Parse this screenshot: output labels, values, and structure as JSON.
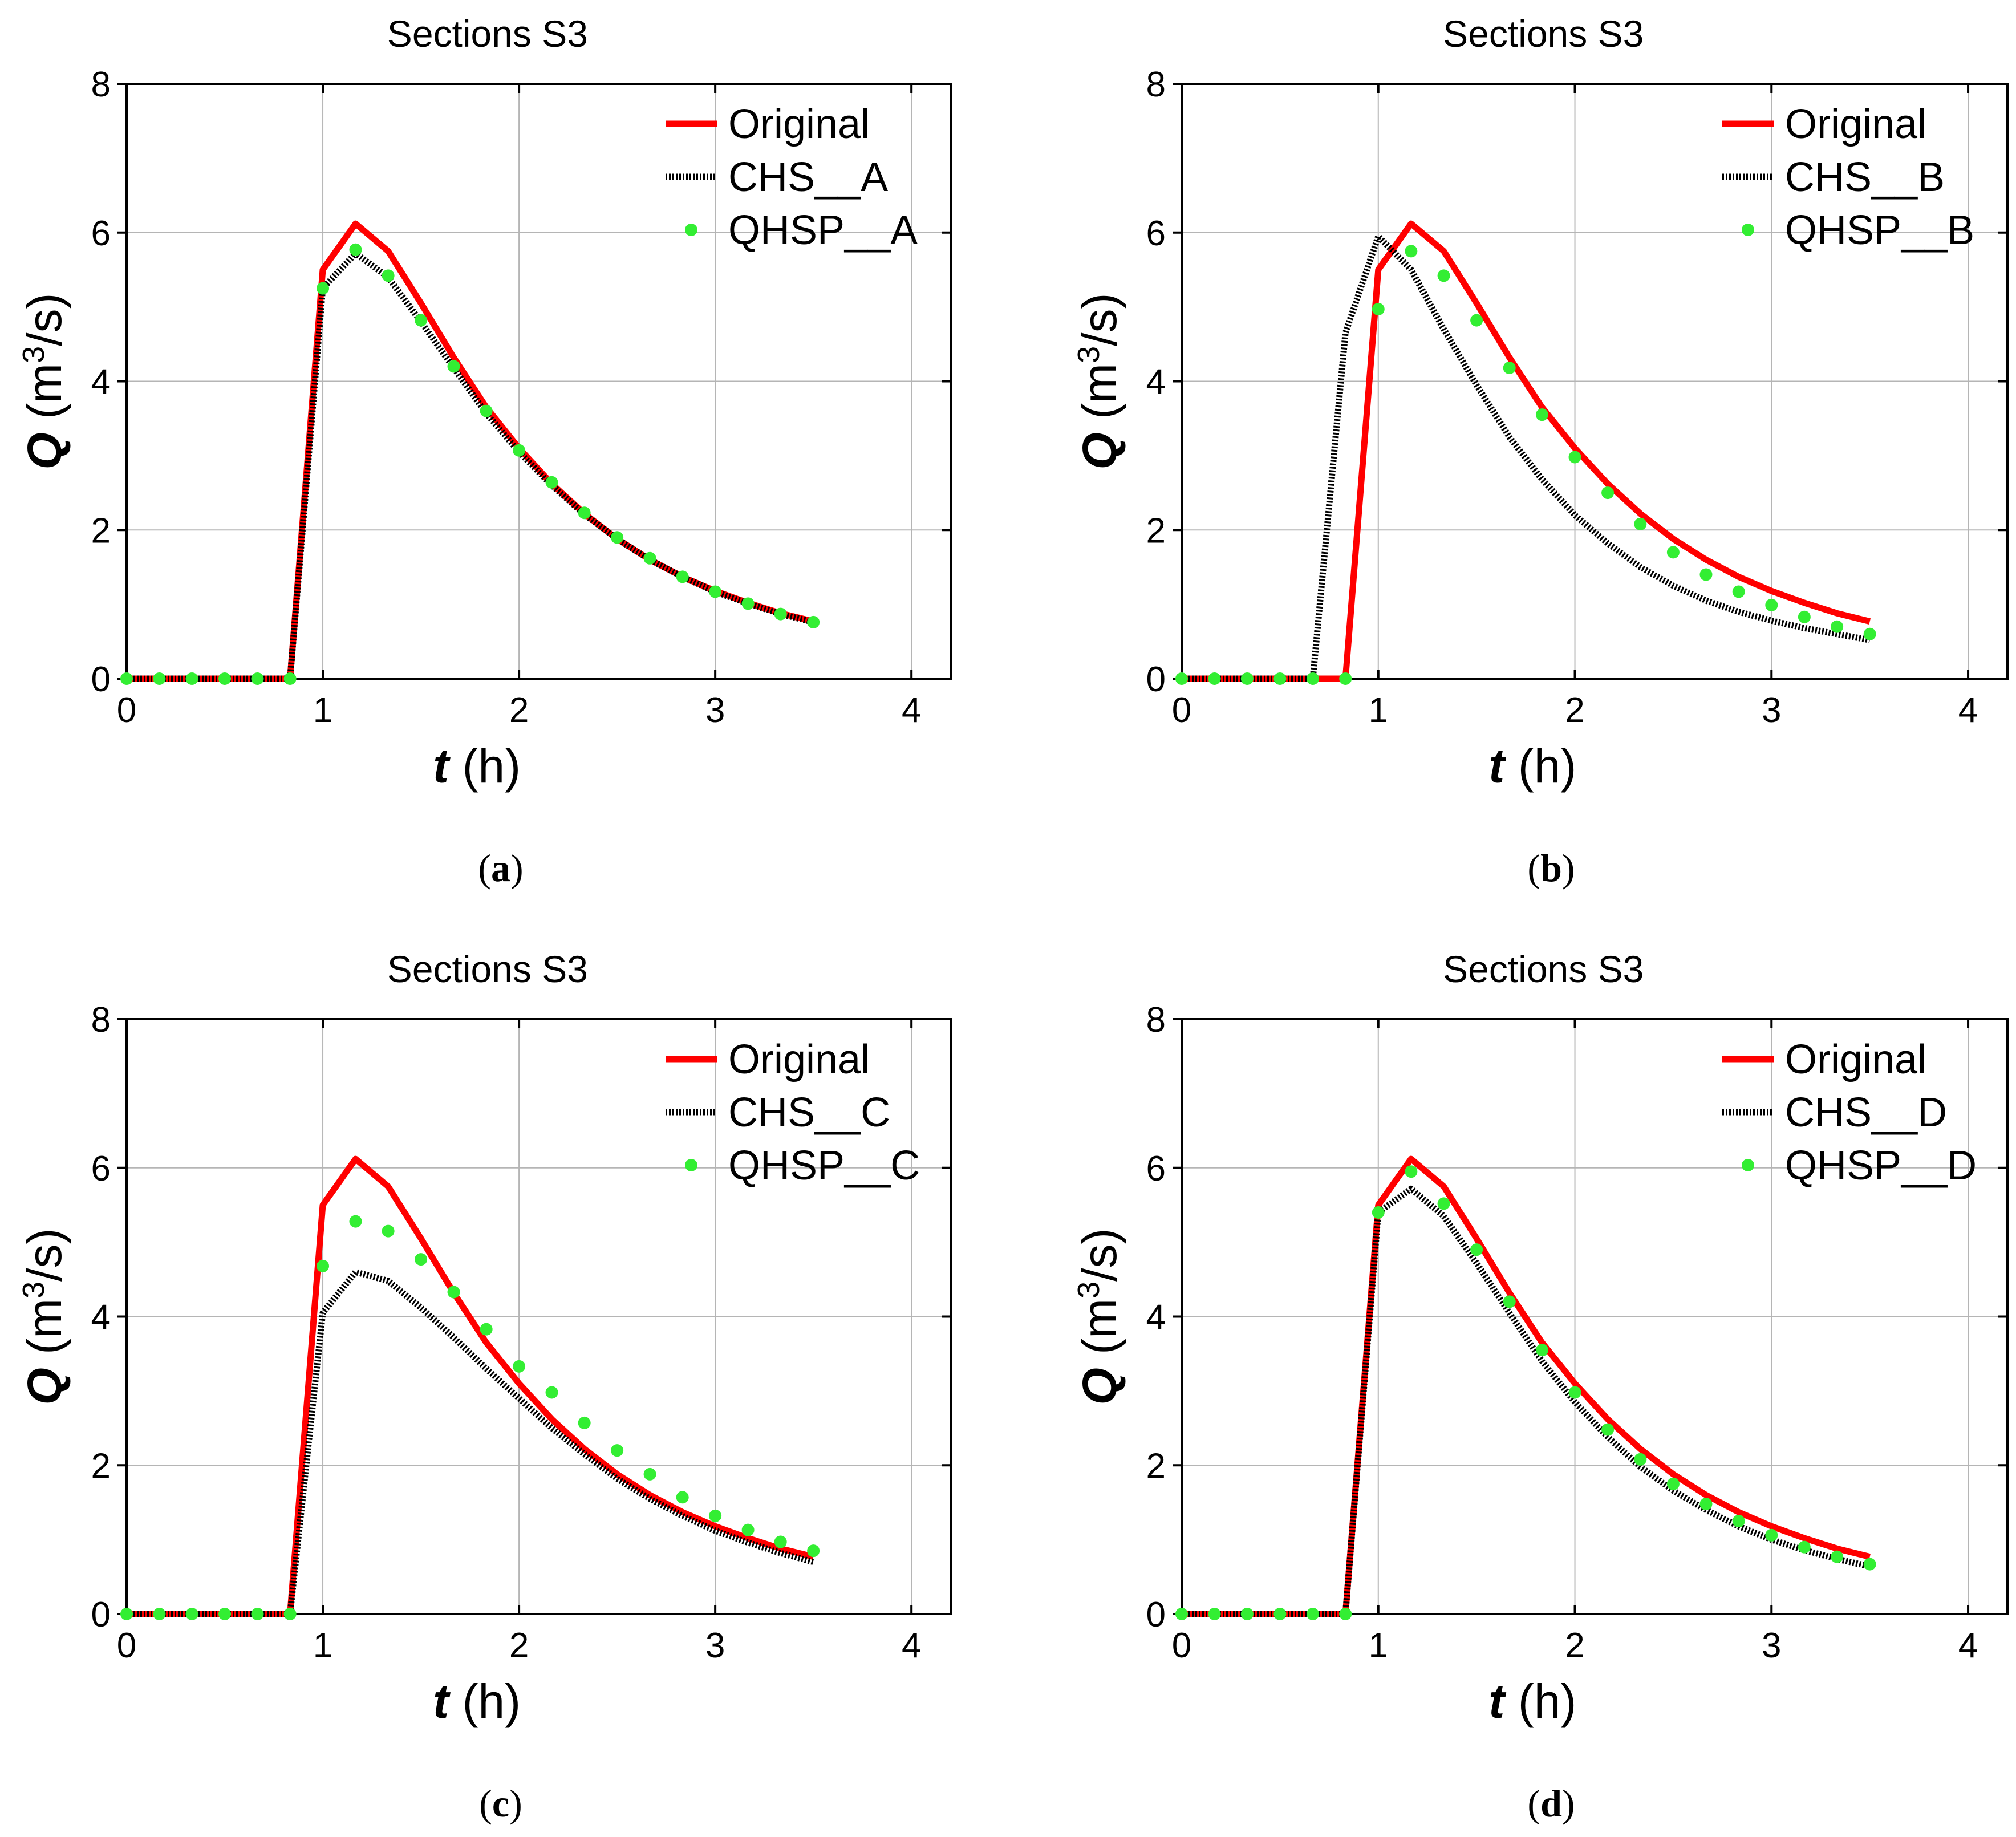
{
  "colors": {
    "original": "#ff0000",
    "chs": "#000000",
    "qhsp": "#33ee33",
    "grid": "#b5b5b5"
  },
  "chart_data": [
    {
      "type": "line",
      "panel": "a",
      "caption": "(a)",
      "caption_letter": "a",
      "title": "Sections S3",
      "xlabel_symbol": "t",
      "xlabel_unit": " (h)",
      "ylabel_symbol": "Q",
      "ylabel_unit_prefix": " (m",
      "ylabel_unit_exp": "3",
      "ylabel_unit_suffix": "/s)",
      "xlim": [
        0,
        4.2
      ],
      "ylim": [
        0,
        8
      ],
      "xticks": [
        0,
        1,
        2,
        3,
        4
      ],
      "yticks": [
        0,
        2,
        4,
        6,
        8
      ],
      "legend_position": "top-right",
      "grid": true,
      "x": [
        0,
        0.167,
        0.333,
        0.5,
        0.667,
        0.833,
        1.0,
        1.167,
        1.333,
        1.5,
        1.667,
        1.833,
        2.0,
        2.167,
        2.333,
        2.5,
        2.667,
        2.833,
        3.0,
        3.167,
        3.333,
        3.5
      ],
      "series": [
        {
          "name": "Original",
          "style": "solid",
          "values": [
            0,
            0,
            0,
            0,
            0,
            0,
            5.5,
            6.12,
            5.75,
            5.05,
            4.32,
            3.65,
            3.1,
            2.62,
            2.22,
            1.88,
            1.6,
            1.37,
            1.18,
            1.02,
            0.88,
            0.77
          ]
        },
        {
          "name": "CHS__A",
          "style": "dotted",
          "values": [
            0,
            0,
            0,
            0,
            0,
            0,
            5.25,
            5.72,
            5.4,
            4.8,
            4.18,
            3.57,
            3.05,
            2.6,
            2.21,
            1.88,
            1.6,
            1.37,
            1.17,
            1.01,
            0.87,
            0.76
          ]
        },
        {
          "name": "QHSP__A",
          "style": "marker",
          "values": [
            0,
            0,
            0,
            0,
            0,
            0,
            5.25,
            5.77,
            5.42,
            4.82,
            4.2,
            3.6,
            3.07,
            2.64,
            2.23,
            1.9,
            1.62,
            1.37,
            1.17,
            1.01,
            0.87,
            0.76
          ]
        }
      ]
    },
    {
      "type": "line",
      "panel": "b",
      "caption": "(b)",
      "caption_letter": "b",
      "title": "Sections S3",
      "xlabel_symbol": "t",
      "xlabel_unit": " (h)",
      "ylabel_symbol": "Q",
      "ylabel_unit_prefix": " (m",
      "ylabel_unit_exp": "3",
      "ylabel_unit_suffix": "/s)",
      "xlim": [
        0,
        4.2
      ],
      "ylim": [
        0,
        8
      ],
      "xticks": [
        0,
        1,
        2,
        3,
        4
      ],
      "yticks": [
        0,
        2,
        4,
        6,
        8
      ],
      "legend_position": "top-right",
      "grid": true,
      "x": [
        0,
        0.167,
        0.333,
        0.5,
        0.667,
        0.833,
        1.0,
        1.167,
        1.333,
        1.5,
        1.667,
        1.833,
        2.0,
        2.167,
        2.333,
        2.5,
        2.667,
        2.833,
        3.0,
        3.167,
        3.333,
        3.5
      ],
      "series": [
        {
          "name": "Original",
          "style": "solid",
          "values": [
            0,
            0,
            0,
            0,
            0,
            0,
            5.5,
            6.12,
            5.75,
            5.05,
            4.32,
            3.65,
            3.1,
            2.62,
            2.22,
            1.88,
            1.6,
            1.37,
            1.18,
            1.02,
            0.88,
            0.77
          ]
        },
        {
          "name": "CHS__B",
          "style": "dotted",
          "x": [
            0,
            0.167,
            0.333,
            0.5,
            0.667,
            0.833,
            1.0,
            1.167,
            1.333,
            1.5,
            1.667,
            1.833,
            2.0,
            2.167,
            2.333,
            2.5,
            2.667,
            2.833,
            3.0,
            3.167,
            3.333,
            3.5
          ],
          "values": [
            0,
            0,
            0,
            0,
            0,
            4.65,
            5.95,
            5.5,
            4.7,
            3.95,
            3.25,
            2.68,
            2.2,
            1.82,
            1.5,
            1.25,
            1.05,
            0.9,
            0.78,
            0.68,
            0.6,
            0.52
          ]
        },
        {
          "name": "QHSP__B",
          "style": "marker",
          "values": [
            0,
            0,
            0,
            0,
            0,
            0,
            4.97,
            5.75,
            5.42,
            4.82,
            4.18,
            3.55,
            2.98,
            2.5,
            2.08,
            1.7,
            1.4,
            1.17,
            0.99,
            0.83,
            0.7,
            0.6
          ]
        }
      ]
    },
    {
      "type": "line",
      "panel": "c",
      "caption": "(c)",
      "caption_letter": "c",
      "title": "Sections S3",
      "xlabel_symbol": "t",
      "xlabel_unit": " (h)",
      "ylabel_symbol": "Q",
      "ylabel_unit_prefix": " (m",
      "ylabel_unit_exp": "3",
      "ylabel_unit_suffix": "/s)",
      "xlim": [
        0,
        4.2
      ],
      "ylim": [
        0,
        8
      ],
      "xticks": [
        0,
        1,
        2,
        3,
        4
      ],
      "yticks": [
        0,
        2,
        4,
        6,
        8
      ],
      "legend_position": "top-right",
      "grid": true,
      "x": [
        0,
        0.167,
        0.333,
        0.5,
        0.667,
        0.833,
        1.0,
        1.167,
        1.333,
        1.5,
        1.667,
        1.833,
        2.0,
        2.167,
        2.333,
        2.5,
        2.667,
        2.833,
        3.0,
        3.167,
        3.333,
        3.5
      ],
      "series": [
        {
          "name": "Original",
          "style": "solid",
          "values": [
            0,
            0,
            0,
            0,
            0,
            0,
            5.5,
            6.12,
            5.75,
            5.05,
            4.32,
            3.65,
            3.1,
            2.62,
            2.22,
            1.88,
            1.6,
            1.37,
            1.18,
            1.02,
            0.88,
            0.77
          ]
        },
        {
          "name": "CHS__C",
          "style": "dotted",
          "values": [
            0,
            0,
            0,
            0,
            0,
            0,
            4.05,
            4.6,
            4.48,
            4.12,
            3.72,
            3.3,
            2.9,
            2.5,
            2.15,
            1.82,
            1.55,
            1.32,
            1.12,
            0.96,
            0.82,
            0.7
          ]
        },
        {
          "name": "QHSP__C",
          "style": "marker",
          "values": [
            0,
            0,
            0,
            0,
            0,
            0,
            4.68,
            5.28,
            5.15,
            4.77,
            4.33,
            3.83,
            3.33,
            2.98,
            2.57,
            2.2,
            1.88,
            1.57,
            1.32,
            1.13,
            0.97,
            0.85
          ]
        }
      ]
    },
    {
      "type": "line",
      "panel": "d",
      "caption": "(d)",
      "caption_letter": "d",
      "title": "Sections S3",
      "xlabel_symbol": "t",
      "xlabel_unit": " (h)",
      "ylabel_symbol": "Q",
      "ylabel_unit_prefix": " (m",
      "ylabel_unit_exp": "3",
      "ylabel_unit_suffix": "/s)",
      "xlim": [
        0,
        4.2
      ],
      "ylim": [
        0,
        8
      ],
      "xticks": [
        0,
        1,
        2,
        3,
        4
      ],
      "yticks": [
        0,
        2,
        4,
        6,
        8
      ],
      "legend_position": "top-right",
      "grid": true,
      "x": [
        0,
        0.167,
        0.333,
        0.5,
        0.667,
        0.833,
        1.0,
        1.167,
        1.333,
        1.5,
        1.667,
        1.833,
        2.0,
        2.167,
        2.333,
        2.5,
        2.667,
        2.833,
        3.0,
        3.167,
        3.333,
        3.5
      ],
      "series": [
        {
          "name": "Original",
          "style": "solid",
          "values": [
            0,
            0,
            0,
            0,
            0,
            0,
            5.5,
            6.12,
            5.75,
            5.05,
            4.32,
            3.65,
            3.1,
            2.62,
            2.22,
            1.88,
            1.6,
            1.37,
            1.18,
            1.02,
            0.88,
            0.77
          ]
        },
        {
          "name": "CHS__D",
          "style": "dotted",
          "values": [
            0,
            0,
            0,
            0,
            0,
            0,
            5.4,
            5.72,
            5.35,
            4.72,
            4.05,
            3.4,
            2.85,
            2.38,
            1.98,
            1.66,
            1.4,
            1.18,
            1.0,
            0.86,
            0.74,
            0.64
          ]
        },
        {
          "name": "QHSP__D",
          "style": "marker",
          "values": [
            0,
            0,
            0,
            0,
            0,
            0,
            5.4,
            5.95,
            5.52,
            4.9,
            4.2,
            3.55,
            2.98,
            2.48,
            2.08,
            1.75,
            1.48,
            1.25,
            1.06,
            0.9,
            0.77,
            0.67
          ]
        }
      ]
    }
  ]
}
